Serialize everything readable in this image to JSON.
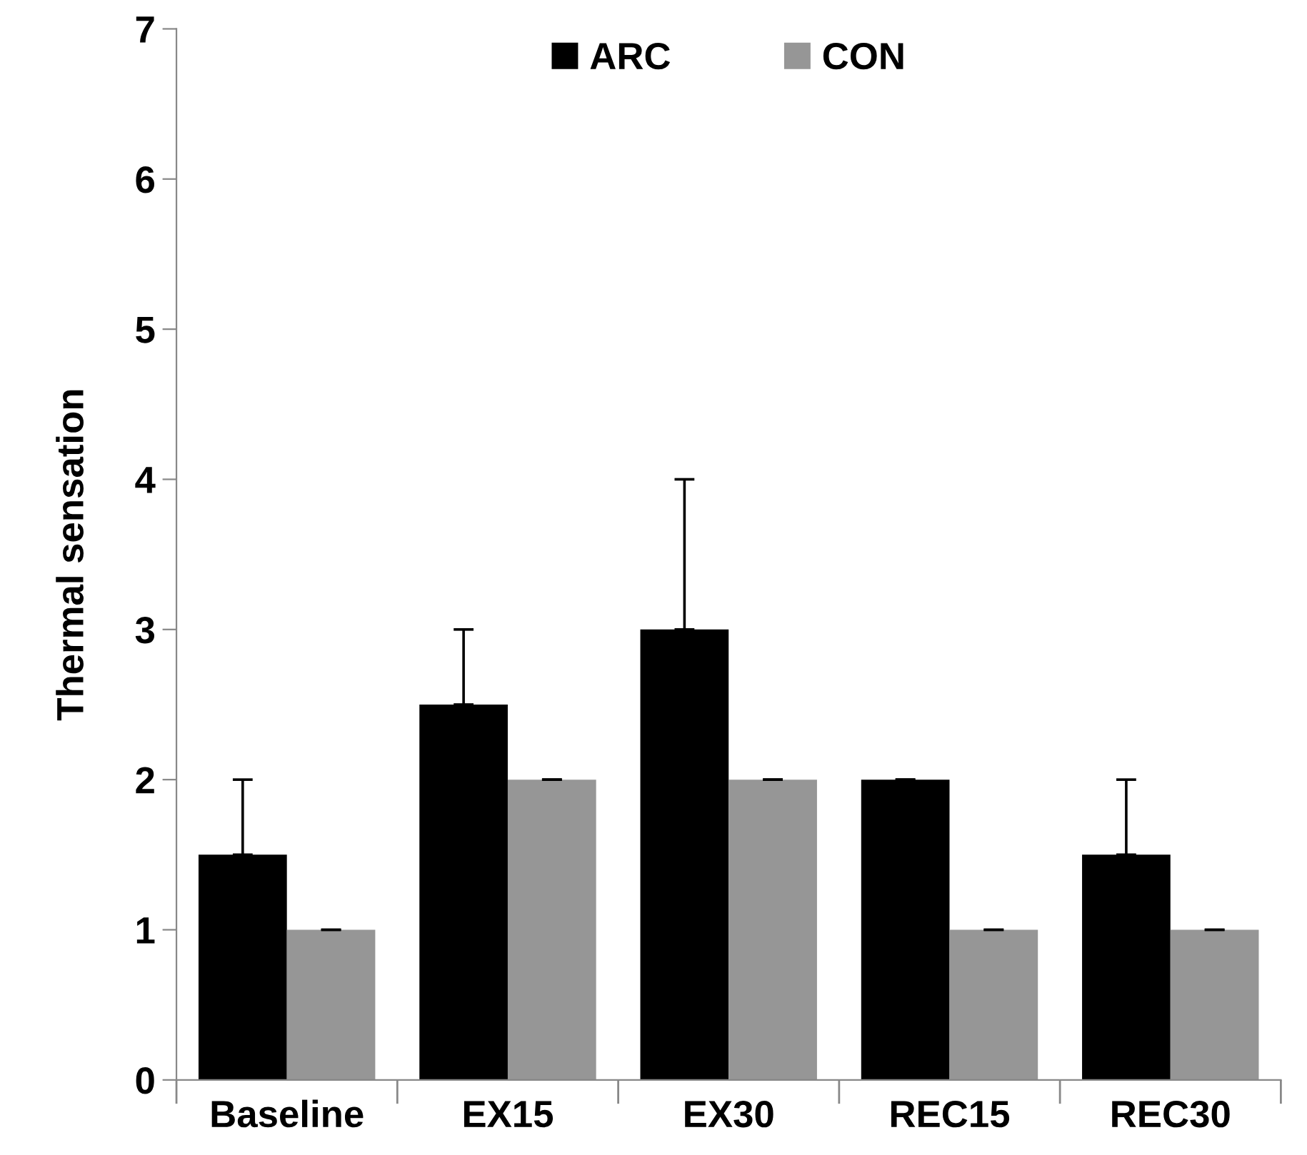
{
  "chart_data": {
    "type": "bar",
    "ylabel": "Thermal sensation",
    "categories": [
      "Baseline",
      "EX15",
      "EX30",
      "REC15",
      "REC30"
    ],
    "series": [
      {
        "name": "ARC",
        "color": "#000000",
        "values": [
          1.5,
          2.5,
          3.0,
          2.0,
          1.5
        ],
        "errors": [
          [
            1.5,
            2.0
          ],
          [
            2.5,
            3.0
          ],
          [
            3.0,
            4.0
          ],
          [
            2.0,
            2.0
          ],
          [
            1.5,
            2.0
          ]
        ]
      },
      {
        "name": "CON",
        "color": "#969696",
        "values": [
          1,
          2,
          2,
          1,
          1
        ],
        "errors": [
          [
            1,
            1
          ],
          [
            2,
            2
          ],
          [
            2,
            2
          ],
          [
            1,
            1
          ],
          [
            1,
            1
          ]
        ]
      }
    ],
    "ylim": [
      0,
      7
    ],
    "yticks": [
      0,
      1,
      2,
      3,
      4,
      5,
      6,
      7
    ],
    "grid": false,
    "legend": "top"
  }
}
